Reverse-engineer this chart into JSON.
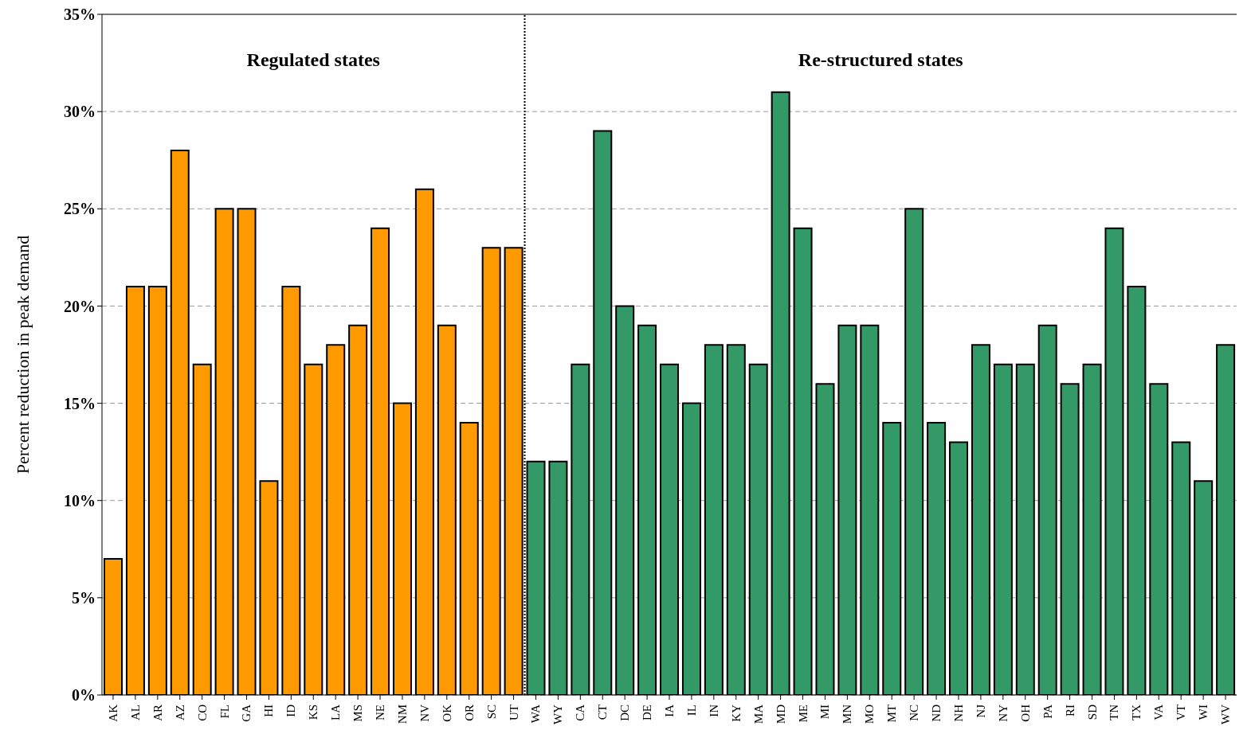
{
  "chart_data": {
    "type": "bar",
    "ylabel": "Percent reduction in peak demand",
    "categories": [
      "AK",
      "AL",
      "AR",
      "AZ",
      "CO",
      "FL",
      "GA",
      "HI",
      "ID",
      "KS",
      "LA",
      "MS",
      "NE",
      "NM",
      "NV",
      "OK",
      "OR",
      "SC",
      "UT",
      "WA",
      "WY",
      "CA",
      "CT",
      "DC",
      "DE",
      "IA",
      "IL",
      "IN",
      "KY",
      "MA",
      "MD",
      "ME",
      "MI",
      "MN",
      "MO",
      "MT",
      "NC",
      "ND",
      "NH",
      "NJ",
      "NY",
      "OH",
      "PA",
      "RI",
      "SD",
      "TN",
      "TX",
      "VA",
      "VT",
      "WI",
      "WV"
    ],
    "values": [
      7,
      21,
      21,
      28,
      17,
      25,
      25,
      11,
      21,
      17,
      18,
      19,
      24,
      15,
      26,
      19,
      14,
      23,
      23,
      12,
      12,
      17,
      29,
      20,
      19,
      17,
      15,
      18,
      18,
      17,
      31,
      24,
      16,
      19,
      19,
      14,
      25,
      14,
      13,
      18,
      17,
      17,
      19,
      16,
      17,
      24,
      21,
      16,
      13,
      11,
      18
    ],
    "colors": [
      "#ff9900",
      "#ff9900",
      "#ff9900",
      "#ff9900",
      "#ff9900",
      "#ff9900",
      "#ff9900",
      "#ff9900",
      "#ff9900",
      "#ff9900",
      "#ff9900",
      "#ff9900",
      "#ff9900",
      "#ff9900",
      "#ff9900",
      "#ff9900",
      "#ff9900",
      "#ff9900",
      "#ff9900",
      "#339966",
      "#339966",
      "#339966",
      "#339966",
      "#339966",
      "#339966",
      "#339966",
      "#339966",
      "#339966",
      "#339966",
      "#339966",
      "#339966",
      "#339966",
      "#339966",
      "#339966",
      "#339966",
      "#339966",
      "#339966",
      "#339966",
      "#339966",
      "#339966",
      "#339966",
      "#339966",
      "#339966",
      "#339966",
      "#339966",
      "#339966",
      "#339966",
      "#339966",
      "#339966",
      "#339966",
      "#339966"
    ],
    "ylim": [
      0,
      35
    ],
    "yticks": [
      {
        "value": 0,
        "label": "0%"
      },
      {
        "value": 5,
        "label": "5%"
      },
      {
        "value": 10,
        "label": "10%"
      },
      {
        "value": 15,
        "label": "15%"
      },
      {
        "value": 20,
        "label": "20%"
      },
      {
        "value": 25,
        "label": "25%"
      },
      {
        "value": 30,
        "label": "30%"
      },
      {
        "value": 35,
        "label": "35%"
      }
    ],
    "grid": "y",
    "annotations": [
      "Regulated states",
      "Re-structured states"
    ],
    "ref_lines": [
      {
        "axis": "x",
        "value": "UT",
        "line_style": "dotted",
        "color": "#000000"
      }
    ]
  }
}
